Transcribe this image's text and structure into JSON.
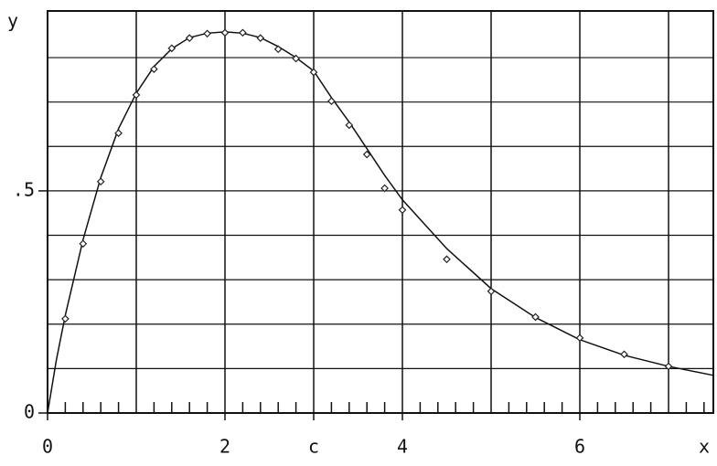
{
  "chart_data": {
    "type": "line",
    "x_label": "x",
    "y_label": "y",
    "xlim": [
      0,
      7.505
    ],
    "ylim": [
      0,
      0.905
    ],
    "xticks": [
      0,
      2,
      {
        "value": 3,
        "label": "c"
      },
      4,
      6
    ],
    "yticks": [
      0,
      {
        "value": 0.5,
        "label": ".5"
      }
    ],
    "xgrid": [
      1,
      2,
      3,
      4,
      5,
      6,
      7
    ],
    "ygrid": [
      0.1,
      0.2,
      0.3,
      0.4,
      0.5,
      0.6,
      0.7,
      0.8
    ],
    "xminorticks": [
      0.2,
      0.4,
      0.6,
      0.8,
      1.2,
      1.4,
      1.6,
      1.8,
      2.2,
      2.4,
      2.6,
      2.8,
      3.2,
      3.4,
      3.6,
      3.8,
      4.2,
      4.4,
      4.6,
      4.8,
      5.2,
      5.4,
      5.6,
      5.8,
      6.2,
      6.4,
      6.6,
      6.8,
      7.2,
      7.4
    ],
    "grid": true,
    "series": [
      {
        "kind": "curve",
        "color": "#111111",
        "x": [
          0,
          0.1,
          0.2,
          0.4,
          0.6,
          0.8,
          1.0,
          1.2,
          1.4,
          1.6,
          1.8,
          2.0,
          2.2,
          2.4,
          2.6,
          2.8,
          3.0,
          3.2,
          3.4,
          3.6,
          3.8,
          4.0,
          4.5,
          5.0,
          5.5,
          6.0,
          6.5,
          7.0,
          7.5
        ],
        "values": [
          0,
          0.12,
          0.22,
          0.39,
          0.53,
          0.64,
          0.72,
          0.78,
          0.82,
          0.845,
          0.855,
          0.858,
          0.855,
          0.845,
          0.825,
          0.8,
          0.77,
          0.71,
          0.655,
          0.595,
          0.535,
          0.48,
          0.37,
          0.28,
          0.215,
          0.165,
          0.13,
          0.105,
          0.085
        ]
      },
      {
        "kind": "points",
        "color": "#222222",
        "x": [
          0.2,
          0.4,
          0.6,
          0.8,
          1.0,
          1.2,
          1.4,
          1.6,
          1.8,
          2.0,
          2.2,
          2.4,
          2.6,
          2.8,
          3.0,
          3.2,
          3.4,
          3.6,
          3.8,
          4.0,
          4.5,
          5.0,
          5.5,
          6.0,
          6.5,
          7.0
        ],
        "values": [
          0.212,
          0.381,
          0.521,
          0.63,
          0.716,
          0.774,
          0.821,
          0.844,
          0.854,
          0.856,
          0.856,
          0.844,
          0.819,
          0.798,
          0.767,
          0.702,
          0.648,
          0.582,
          0.506,
          0.457,
          0.346,
          0.274,
          0.216,
          0.169,
          0.132,
          0.105
        ]
      }
    ]
  }
}
